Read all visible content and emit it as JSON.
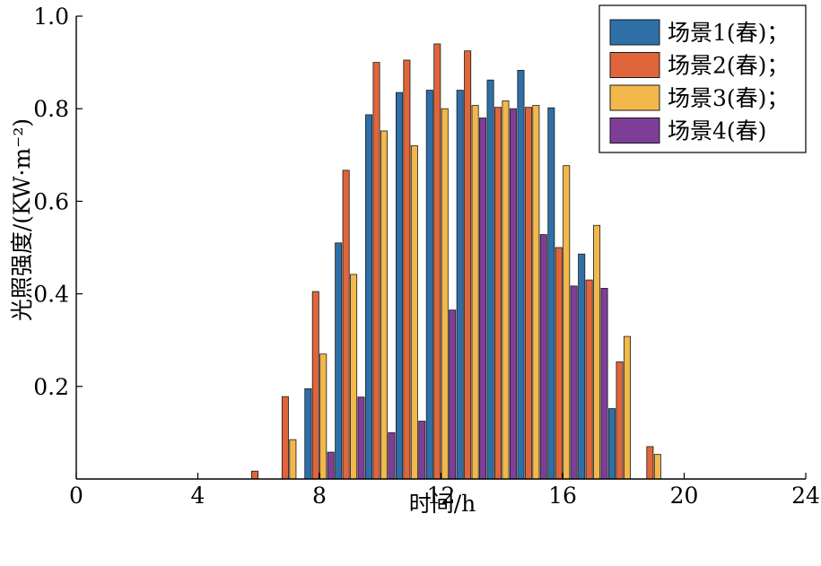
{
  "chart_data": {
    "type": "bar",
    "xlabel": "时间/h",
    "ylabel": "光照强度/(KW·m⁻²)",
    "xlim": [
      0,
      24
    ],
    "ylim": [
      0,
      1.0
    ],
    "xticks": [
      "0",
      "4",
      "8",
      "12",
      "16",
      "20",
      "24"
    ],
    "yticks": [
      "0.2",
      "0.4",
      "0.6",
      "0.8",
      "1.0"
    ],
    "legend_position": "top-right",
    "grid": false,
    "x": [
      6,
      7,
      8,
      9,
      10,
      11,
      12,
      13,
      14,
      15,
      16,
      17,
      18,
      19
    ],
    "series": [
      {
        "name": "场景1(春)；",
        "color": "#2e6fa7",
        "values": [
          0,
          0,
          0.195,
          0.51,
          0.787,
          0.835,
          0.84,
          0.84,
          0.862,
          0.883,
          0.802,
          0.486,
          0.152,
          0
        ]
      },
      {
        "name": "场景2(春)；",
        "color": "#e0653a",
        "values": [
          0.017,
          0.178,
          0.405,
          0.667,
          0.9,
          0.905,
          0.94,
          0.925,
          0.803,
          0.803,
          0.5,
          0.43,
          0.253,
          0.07
        ]
      },
      {
        "name": "场景3(春)；",
        "color": "#f2b84b",
        "values": [
          0,
          0.085,
          0.27,
          0.442,
          0.752,
          0.72,
          0.8,
          0.807,
          0.817,
          0.807,
          0.677,
          0.548,
          0.308,
          0.053
        ]
      },
      {
        "name": "场景4(春)",
        "color": "#7e3e98",
        "values": [
          0,
          0,
          0.058,
          0.177,
          0.1,
          0.125,
          0.365,
          0.78,
          0.8,
          0.528,
          0.417,
          0.412,
          0,
          0
        ]
      }
    ]
  }
}
